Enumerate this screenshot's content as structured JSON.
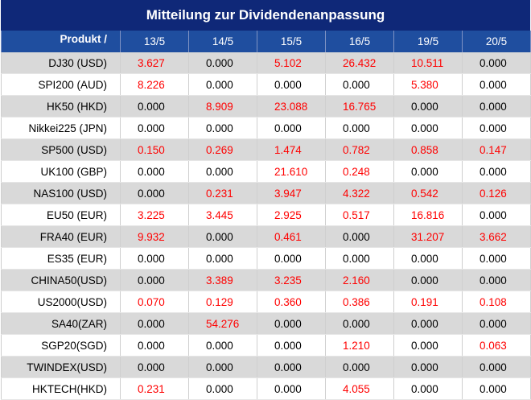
{
  "title": "Mitteilung zur Dividendenanpassung",
  "header": {
    "product_label": "Produkt /",
    "dates": [
      "13/5",
      "14/5",
      "15/5",
      "16/5",
      "19/5",
      "20/5"
    ]
  },
  "rows": [
    {
      "product": "DJ30 (USD)",
      "values": [
        "3.627",
        "0.000",
        "5.102",
        "26.432",
        "10.511",
        "0.000"
      ]
    },
    {
      "product": "SPI200 (AUD)",
      "values": [
        "8.226",
        "0.000",
        "0.000",
        "0.000",
        "5.380",
        "0.000"
      ]
    },
    {
      "product": "HK50 (HKD)",
      "values": [
        "0.000",
        "8.909",
        "23.088",
        "16.765",
        "0.000",
        "0.000"
      ]
    },
    {
      "product": "Nikkei225 (JPN)",
      "values": [
        "0.000",
        "0.000",
        "0.000",
        "0.000",
        "0.000",
        "0.000"
      ]
    },
    {
      "product": "SP500 (USD)",
      "values": [
        "0.150",
        "0.269",
        "1.474",
        "0.782",
        "0.858",
        "0.147"
      ]
    },
    {
      "product": "UK100 (GBP)",
      "values": [
        "0.000",
        "0.000",
        "21.610",
        "0.248",
        "0.000",
        "0.000"
      ]
    },
    {
      "product": "NAS100 (USD)",
      "values": [
        "0.000",
        "0.231",
        "3.947",
        "4.322",
        "0.542",
        "0.126"
      ]
    },
    {
      "product": "EU50 (EUR)",
      "values": [
        "3.225",
        "3.445",
        "2.925",
        "0.517",
        "16.816",
        "0.000"
      ]
    },
    {
      "product": "FRA40 (EUR)",
      "values": [
        "9.932",
        "0.000",
        "0.461",
        "0.000",
        "31.207",
        "3.662"
      ]
    },
    {
      "product": "ES35 (EUR)",
      "values": [
        "0.000",
        "0.000",
        "0.000",
        "0.000",
        "0.000",
        "0.000"
      ]
    },
    {
      "product": "CHINA50(USD)",
      "values": [
        "0.000",
        "3.389",
        "3.235",
        "2.160",
        "0.000",
        "0.000"
      ]
    },
    {
      "product": "US2000(USD)",
      "values": [
        "0.070",
        "0.129",
        "0.360",
        "0.386",
        "0.191",
        "0.108"
      ]
    },
    {
      "product": "SA40(ZAR)",
      "values": [
        "0.000",
        "54.276",
        "0.000",
        "0.000",
        "0.000",
        "0.000"
      ]
    },
    {
      "product": "SGP20(SGD)",
      "values": [
        "0.000",
        "0.000",
        "0.000",
        "1.210",
        "0.000",
        "0.063"
      ]
    },
    {
      "product": "TWINDEX(USD)",
      "values": [
        "0.000",
        "0.000",
        "0.000",
        "0.000",
        "0.000",
        "0.000"
      ]
    },
    {
      "product": "HKTECH(HKD)",
      "values": [
        "0.231",
        "0.000",
        "0.000",
        "4.055",
        "0.000",
        "0.000"
      ]
    }
  ],
  "colors": {
    "title_bg": "#0f2878",
    "header_bg": "#1f4e9f",
    "row_shade": "#d9d9d9",
    "nonzero_value": "#ff0000",
    "zero_value": "#000000"
  }
}
